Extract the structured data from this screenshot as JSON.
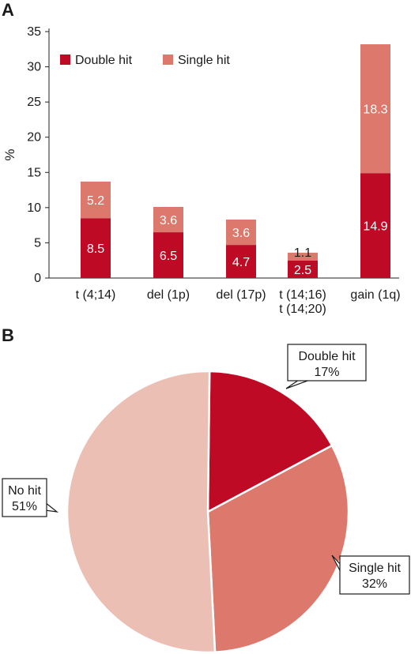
{
  "panels": {
    "a_letter": "A",
    "b_letter": "B"
  },
  "colors": {
    "double_hit": "#bf0a26",
    "single_hit": "#dc786c",
    "no_hit": "#ecbfb4"
  },
  "chart_data": [
    {
      "type": "bar",
      "stacked": true,
      "panel": "A",
      "ylabel": "%",
      "xlabel": "",
      "title": "",
      "ylim": [
        0,
        35
      ],
      "yticks": [
        0,
        5,
        10,
        15,
        20,
        25,
        30,
        35
      ],
      "grid": false,
      "legend_position": "top-left",
      "categories": [
        "t (4;14)",
        "del (1p)",
        "del (17p)",
        "t (14;16)\nt (14;20)",
        "gain (1q)"
      ],
      "series": [
        {
          "name": "Double hit",
          "color": "#bf0a26",
          "values": [
            8.5,
            6.5,
            4.7,
            2.5,
            14.9
          ]
        },
        {
          "name": "Single hit",
          "color": "#dc786c",
          "values": [
            5.2,
            3.6,
            3.6,
            1.1,
            18.3
          ]
        }
      ]
    },
    {
      "type": "pie",
      "panel": "B",
      "title": "",
      "slices": [
        {
          "name": "Double hit",
          "value": 17,
          "label": "17%",
          "color": "#bf0a26"
        },
        {
          "name": "Single hit",
          "value": 32,
          "label": "32%",
          "color": "#dc786c"
        },
        {
          "name": "No hit",
          "value": 51,
          "label": "51%",
          "color": "#ecbfb4"
        }
      ]
    }
  ]
}
